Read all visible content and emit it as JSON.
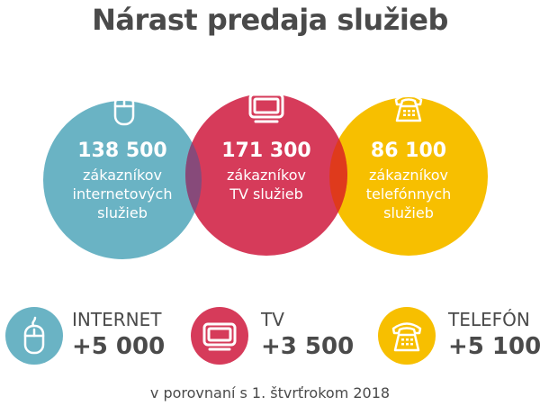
{
  "title": "Nárast predaja služieb",
  "colors": {
    "internet": "#6ab3c4",
    "tv": "#d63b5a",
    "phone": "#f7bf00",
    "overlap_it": "#874a7a",
    "overlap_tp": "#df3a1c",
    "text": "#4a4a4a"
  },
  "circles": [
    {
      "icon": "mouse-icon",
      "number": "138 500",
      "description": "zákazníkov\ninternetových\nslužieb"
    },
    {
      "icon": "tv-icon",
      "number": "171 300",
      "description": "zákazníkov\nTV služieb"
    },
    {
      "icon": "telephone-icon",
      "number": "86 100",
      "description": "zákazníkov\ntelefónnych\nslužieb"
    }
  ],
  "legend": [
    {
      "icon": "mouse-icon",
      "label": "INTERNET",
      "value": "+5 000"
    },
    {
      "icon": "tv-icon",
      "label": "TV",
      "value": "+3 500"
    },
    {
      "icon": "telephone-icon",
      "label": "TELEFÓN",
      "value": "+5 100"
    }
  ],
  "footnote": "v porovnaní s 1. štvrťrokom 2018"
}
